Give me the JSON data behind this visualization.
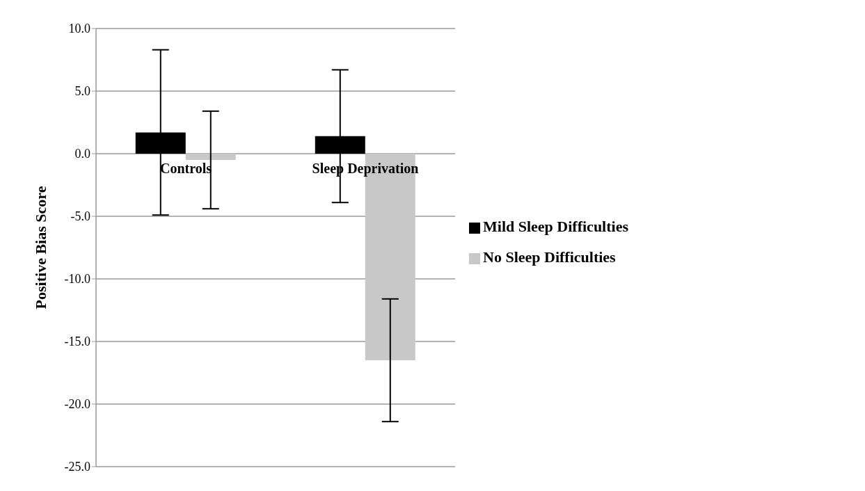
{
  "chart_data": {
    "type": "bar",
    "ylabel": "Positive Bias Score",
    "categories": [
      "Controls",
      "Sleep Deprivation"
    ],
    "series": [
      {
        "name": "Mild Sleep Difficulties",
        "color": "#000000",
        "values": [
          1.7,
          1.4
        ],
        "errors": [
          6.6,
          5.3
        ]
      },
      {
        "name": "No Sleep Difficulties",
        "color": "#c8c8c8",
        "values": [
          -0.5,
          -16.5
        ],
        "errors": [
          3.9,
          4.9
        ]
      }
    ],
    "ylim": [
      -25,
      10
    ],
    "yticks": [
      {
        "value": -25,
        "label": "-25.0"
      },
      {
        "value": -20,
        "label": "-20.0"
      },
      {
        "value": -15,
        "label": "-15.0"
      },
      {
        "value": -10,
        "label": "-10.0"
      },
      {
        "value": -5,
        "label": "-5.0"
      },
      {
        "value": 0,
        "label": "0.0"
      },
      {
        "value": 5,
        "label": "5.0"
      },
      {
        "value": 10,
        "label": "10.0"
      }
    ],
    "grid": "y",
    "legend": "right"
  }
}
